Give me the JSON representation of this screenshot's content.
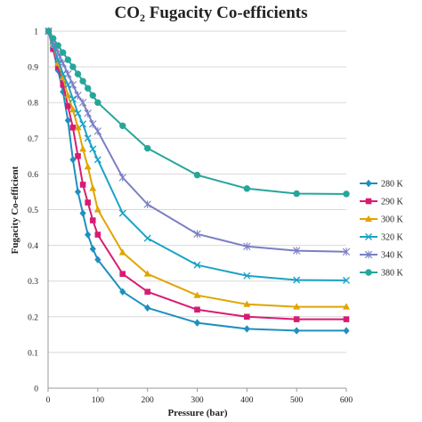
{
  "chart_data": {
    "type": "line",
    "title_main": "CO",
    "title_sub": "2",
    "title_rest": " Fugacity Co-efficients",
    "xlabel": "Pressure (bar)",
    "ylabel": "Fugacity Co-efficient",
    "xlim": [
      0,
      600
    ],
    "ylim": [
      0,
      1
    ],
    "xticks": [
      0,
      100,
      200,
      300,
      400,
      500,
      600
    ],
    "yticks": [
      0,
      0.1,
      0.2,
      0.3,
      0.4,
      0.5,
      0.6,
      0.7,
      0.8,
      0.9,
      1
    ],
    "ytick_labels": [
      "0",
      "0.1",
      "0.2",
      "0.3",
      "0.4",
      "0.5",
      "0.6",
      "0.7",
      "0.8",
      "0.9",
      "1"
    ],
    "grid": "horizontal",
    "legend_position": "right",
    "series": [
      {
        "name": "280 K",
        "color": "#1f8fbf",
        "marker": "diamond",
        "x": [
          1,
          10,
          20,
          30,
          40,
          50,
          60,
          70,
          80,
          90,
          100,
          150,
          200,
          300,
          400,
          500,
          600
        ],
        "y": [
          1.0,
          0.95,
          0.89,
          0.83,
          0.75,
          0.64,
          0.55,
          0.49,
          0.43,
          0.39,
          0.36,
          0.27,
          0.225,
          0.183,
          0.166,
          0.161,
          0.161
        ]
      },
      {
        "name": "290 K",
        "color": "#d81b72",
        "marker": "square",
        "x": [
          1,
          10,
          20,
          30,
          40,
          50,
          60,
          70,
          80,
          90,
          100,
          150,
          200,
          300,
          400,
          500,
          600
        ],
        "y": [
          1.0,
          0.95,
          0.9,
          0.85,
          0.79,
          0.73,
          0.65,
          0.57,
          0.52,
          0.47,
          0.43,
          0.32,
          0.27,
          0.22,
          0.2,
          0.193,
          0.193
        ]
      },
      {
        "name": "300 K",
        "color": "#e0a500",
        "marker": "triangle",
        "x": [
          1,
          10,
          20,
          30,
          40,
          50,
          60,
          70,
          80,
          90,
          100,
          150,
          200,
          300,
          400,
          500,
          600
        ],
        "y": [
          1.0,
          0.96,
          0.91,
          0.87,
          0.82,
          0.78,
          0.73,
          0.67,
          0.62,
          0.56,
          0.5,
          0.38,
          0.32,
          0.26,
          0.235,
          0.228,
          0.228
        ]
      },
      {
        "name": "320 K",
        "color": "#1ba3c6",
        "marker": "cross",
        "x": [
          1,
          10,
          20,
          30,
          40,
          50,
          60,
          70,
          80,
          90,
          100,
          150,
          200,
          300,
          400,
          500,
          600
        ],
        "y": [
          1.0,
          0.96,
          0.92,
          0.88,
          0.85,
          0.81,
          0.77,
          0.74,
          0.7,
          0.67,
          0.64,
          0.49,
          0.42,
          0.345,
          0.315,
          0.303,
          0.302
        ]
      },
      {
        "name": "340 K",
        "color": "#7b7fc4",
        "marker": "x",
        "x": [
          1,
          10,
          20,
          30,
          40,
          50,
          60,
          70,
          80,
          90,
          100,
          150,
          200,
          300,
          400,
          500,
          600
        ],
        "y": [
          1.0,
          0.97,
          0.94,
          0.91,
          0.88,
          0.85,
          0.82,
          0.8,
          0.77,
          0.74,
          0.72,
          0.59,
          0.515,
          0.432,
          0.397,
          0.385,
          0.382
        ]
      },
      {
        "name": "380 K",
        "color": "#26a69a",
        "marker": "circle",
        "x": [
          1,
          10,
          20,
          30,
          40,
          50,
          60,
          70,
          80,
          90,
          100,
          150,
          200,
          300,
          400,
          500,
          600
        ],
        "y": [
          1.0,
          0.98,
          0.96,
          0.94,
          0.92,
          0.9,
          0.88,
          0.86,
          0.84,
          0.82,
          0.8,
          0.735,
          0.672,
          0.597,
          0.559,
          0.545,
          0.544
        ]
      }
    ]
  }
}
